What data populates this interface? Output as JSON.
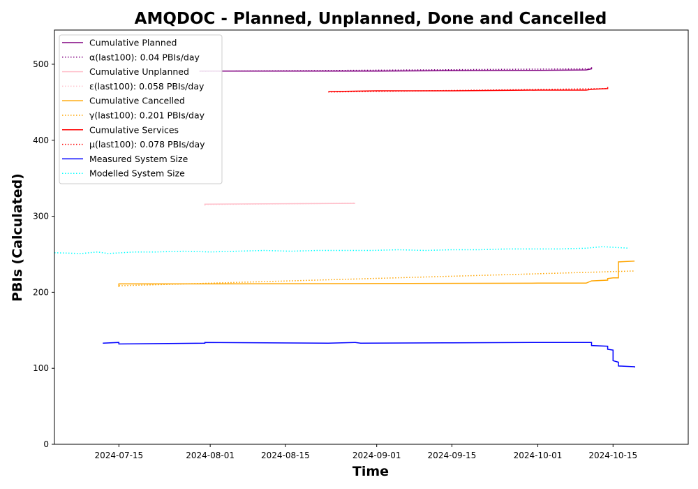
{
  "chart_data": {
    "type": "line",
    "title": "AMQDOC - Planned, Unplanned, Done  and Cancelled",
    "xlabel": "Time",
    "ylabel": "PBIs (Calculated)",
    "xlim": [
      "2024-07-03",
      "2024-10-29"
    ],
    "ylim": [
      0,
      545
    ],
    "x_ticks": [
      "2024-07-15",
      "2024-08-01",
      "2024-08-15",
      "2024-09-01",
      "2024-09-15",
      "2024-10-01",
      "2024-10-15"
    ],
    "y_ticks": [
      0,
      100,
      200,
      300,
      400,
      500
    ],
    "grid": false,
    "legend_position": "top-left",
    "series": [
      {
        "name": "Cumulative Planned",
        "color": "#800080",
        "style": "solid",
        "x": [
          "2024-07-30",
          "2024-08-15",
          "2024-09-01",
          "2024-09-15",
          "2024-10-01",
          "2024-10-10",
          "2024-10-11",
          "2024-10-11"
        ],
        "y": [
          491,
          491,
          491,
          491.5,
          492,
          492.5,
          494,
          496
        ]
      },
      {
        "name": "α(last100): 0.04 PBIs/day",
        "color": "#800080",
        "style": "dotted",
        "x": [
          "2024-07-30",
          "2024-10-11"
        ],
        "y": [
          490.8,
          494
        ]
      },
      {
        "name": "Cumulative Unplanned",
        "color": "#ffc0cb",
        "style": "solid",
        "x": [
          "2024-07-31",
          "2024-07-31",
          "2024-08-15",
          "2024-08-28"
        ],
        "y": [
          314,
          316,
          316.5,
          317
        ]
      },
      {
        "name": "ε(last100): 0.058 PBIs/day",
        "color": "#ffc0cb",
        "style": "dotted",
        "x": [
          "2024-07-31",
          "2024-08-28"
        ],
        "y": [
          315.5,
          317.2
        ]
      },
      {
        "name": "Cumulative Cancelled",
        "color": "#ffa500",
        "style": "solid",
        "x": [
          "2024-07-15",
          "2024-07-15",
          "2024-08-01",
          "2024-09-01",
          "2024-10-01",
          "2024-10-10",
          "2024-10-11",
          "2024-10-14",
          "2024-10-14",
          "2024-10-15",
          "2024-10-16",
          "2024-10-16",
          "2024-10-19"
        ],
        "y": [
          207,
          211,
          211,
          211.5,
          212,
          212,
          215,
          216,
          218,
          219,
          219,
          240,
          241
        ]
      },
      {
        "name": "γ(last100): 0.201 PBIs/day",
        "color": "#ffa500",
        "style": "dotted",
        "x": [
          "2024-07-15",
          "2024-10-19"
        ],
        "y": [
          208.5,
          228
        ]
      },
      {
        "name": "Cumulative Services",
        "color": "#ff0000",
        "style": "solid",
        "x": [
          "2024-08-23",
          "2024-09-01",
          "2024-09-15",
          "2024-10-01",
          "2024-10-10",
          "2024-10-11",
          "2024-10-14",
          "2024-10-14"
        ],
        "y": [
          464,
          465,
          465,
          466,
          466,
          467,
          468,
          470
        ]
      },
      {
        "name": "μ(last100): 0.078 PBIs/day",
        "color": "#ff0000",
        "style": "dotted",
        "x": [
          "2024-08-23",
          "2024-10-14"
        ],
        "y": [
          463.5,
          468
        ]
      },
      {
        "name": "Measured System Size",
        "color": "#0000ff",
        "style": "solid",
        "x": [
          "2024-07-12",
          "2024-07-15",
          "2024-07-15",
          "2024-07-31",
          "2024-07-31",
          "2024-08-23",
          "2024-08-28",
          "2024-08-29",
          "2024-09-15",
          "2024-10-01",
          "2024-10-10",
          "2024-10-11",
          "2024-10-11",
          "2024-10-14",
          "2024-10-14",
          "2024-10-15",
          "2024-10-15",
          "2024-10-16",
          "2024-10-16",
          "2024-10-19",
          "2024-10-19"
        ],
        "y": [
          133,
          134,
          132,
          133,
          134,
          133,
          134,
          133,
          133.5,
          134,
          134,
          134,
          130,
          129,
          125,
          124,
          110,
          108,
          103,
          102,
          101
        ]
      },
      {
        "name": "Modelled System Size",
        "color": "#00ffff",
        "style": "dotted",
        "x": [
          "2024-07-03",
          "2024-07-08",
          "2024-07-11",
          "2024-07-13",
          "2024-07-18",
          "2024-07-22",
          "2024-07-27",
          "2024-08-01",
          "2024-08-06",
          "2024-08-11",
          "2024-08-16",
          "2024-08-21",
          "2024-08-26",
          "2024-08-31",
          "2024-09-05",
          "2024-09-10",
          "2024-09-15",
          "2024-09-20",
          "2024-09-25",
          "2024-09-30",
          "2024-10-05",
          "2024-10-10",
          "2024-10-13",
          "2024-10-18"
        ],
        "y": [
          252,
          251,
          253,
          251,
          253,
          253,
          254,
          253,
          254,
          255,
          254,
          255,
          255,
          255,
          256,
          255,
          256,
          256,
          257,
          257,
          257,
          258,
          260,
          258
        ]
      }
    ]
  }
}
